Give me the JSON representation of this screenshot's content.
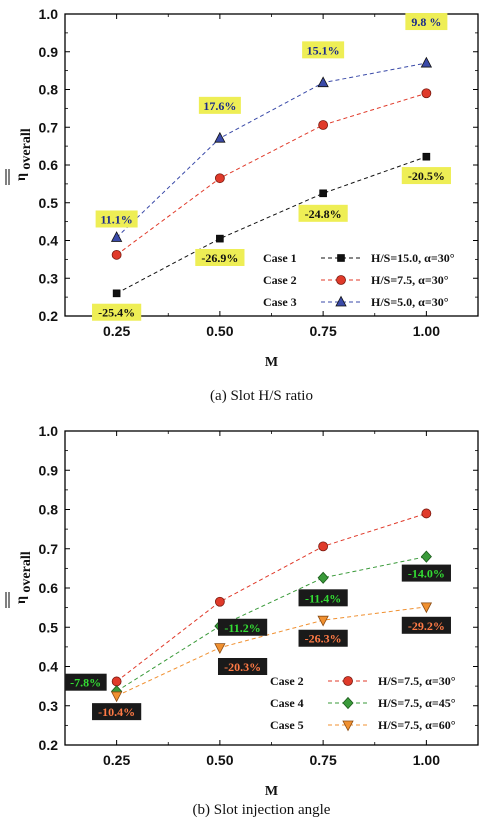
{
  "chart_data": [
    {
      "type": "line",
      "caption": "(a)  Slot  H/S  ratio",
      "xlabel": "M",
      "ylabel_main": "η",
      "ylabel_sub": "overall",
      "xlim": [
        0.125,
        1.125
      ],
      "ylim": [
        0.2,
        1.0
      ],
      "xticks": [
        0.25,
        0.5,
        0.75,
        1.0
      ],
      "xtick_labels": [
        "0.25",
        "0.50",
        "0.75",
        "1.00"
      ],
      "yticks": [
        0.2,
        0.3,
        0.4,
        0.5,
        0.6,
        0.7,
        0.8,
        0.9,
        1.0
      ],
      "ytick_labels": [
        "0.2",
        "0.3",
        "0.4",
        "0.5",
        "0.6",
        "0.7",
        "0.8",
        "0.9",
        "1.0"
      ],
      "grid": false,
      "legend_position": "bottom-right",
      "series": [
        {
          "case": "Case 1",
          "desc": "H/S=15.0,  α=30°",
          "marker": "square",
          "color": "#111111",
          "x": [
            0.25,
            0.5,
            0.75,
            1.0
          ],
          "y": [
            0.26,
            0.405,
            0.525,
            0.622
          ]
        },
        {
          "case": "Case 2",
          "desc": "H/S=7.5,    α=30°",
          "marker": "circle",
          "color": "#e03a2a",
          "x": [
            0.25,
            0.5,
            0.75,
            1.0
          ],
          "y": [
            0.362,
            0.565,
            0.706,
            0.79
          ]
        },
        {
          "case": "Case 3",
          "desc": "H/S=5.0,    α=30°",
          "marker": "triangle-up",
          "color": "#3a4aa8",
          "x": [
            0.25,
            0.5,
            0.75,
            1.0
          ],
          "y": [
            0.408,
            0.671,
            0.818,
            0.87
          ]
        }
      ],
      "annotations": [
        {
          "text": "11.1%",
          "x": 0.25,
          "y": 0.457,
          "bg": "#eeee55",
          "fg": "#1a2a8a"
        },
        {
          "text": "17.6%",
          "x": 0.5,
          "y": 0.758,
          "bg": "#eeee55",
          "fg": "#1a2a8a"
        },
        {
          "text": "15.1%",
          "x": 0.75,
          "y": 0.905,
          "bg": "#eeee55",
          "fg": "#1a2a8a"
        },
        {
          "text": "9.8 %",
          "x": 1.0,
          "y": 0.98,
          "bg": "#eeee55",
          "fg": "#1a2a8a"
        },
        {
          "text": "-25.4%",
          "x": 0.25,
          "y": 0.21,
          "bg": "#eeee55",
          "fg": "#111111"
        },
        {
          "text": "-26.9%",
          "x": 0.5,
          "y": 0.355,
          "bg": "#eeee55",
          "fg": "#111111"
        },
        {
          "text": "-24.8%",
          "x": 0.75,
          "y": 0.472,
          "bg": "#eeee55",
          "fg": "#111111"
        },
        {
          "text": "-20.5%",
          "x": 1.0,
          "y": 0.572,
          "bg": "#eeee55",
          "fg": "#111111"
        }
      ]
    },
    {
      "type": "line",
      "caption": "(b)  Slot  injection  angle",
      "xlabel": "M",
      "ylabel_main": "η",
      "ylabel_sub": "overall",
      "xlim": [
        0.125,
        1.125
      ],
      "ylim": [
        0.2,
        1.0
      ],
      "xticks": [
        0.25,
        0.5,
        0.75,
        1.0
      ],
      "xtick_labels": [
        "0.25",
        "0.50",
        "0.75",
        "1.00"
      ],
      "yticks": [
        0.2,
        0.3,
        0.4,
        0.5,
        0.6,
        0.7,
        0.8,
        0.9,
        1.0
      ],
      "ytick_labels": [
        "0.2",
        "0.3",
        "0.4",
        "0.5",
        "0.6",
        "0.7",
        "0.8",
        "0.9",
        "1.0"
      ],
      "grid": false,
      "legend_position": "bottom-right",
      "series": [
        {
          "case": "Case 2",
          "desc": "H/S=7.5,    α=30°",
          "marker": "circle",
          "color": "#e03a2a",
          "x": [
            0.25,
            0.5,
            0.75,
            1.0
          ],
          "y": [
            0.362,
            0.565,
            0.706,
            0.79
          ]
        },
        {
          "case": "Case 4",
          "desc": "H/S=7.5,    α=45°",
          "marker": "diamond",
          "color": "#3a9a3a",
          "x": [
            0.25,
            0.5,
            0.75,
            1.0
          ],
          "y": [
            0.337,
            0.503,
            0.626,
            0.68
          ]
        },
        {
          "case": "Case 5",
          "desc": "H/S=7.5,    α=60°",
          "marker": "triangle-down",
          "color": "#f09030",
          "x": [
            0.25,
            0.5,
            0.75,
            1.0
          ],
          "y": [
            0.325,
            0.448,
            0.518,
            0.552
          ]
        }
      ],
      "annotations": [
        {
          "text": "-7.8%",
          "x": 0.175,
          "y": 0.36,
          "bg": "#1a1a1a",
          "fg": "#33dd33"
        },
        {
          "text": "-11.2%",
          "x": 0.555,
          "y": 0.5,
          "bg": "#1a1a1a",
          "fg": "#33dd33"
        },
        {
          "text": "-11.4%",
          "x": 0.75,
          "y": 0.575,
          "bg": "#1a1a1a",
          "fg": "#33dd33"
        },
        {
          "text": "-14.0%",
          "x": 1.0,
          "y": 0.638,
          "bg": "#1a1a1a",
          "fg": "#33dd33"
        },
        {
          "text": "-10.4%",
          "x": 0.25,
          "y": 0.285,
          "bg": "#1a1a1a",
          "fg": "#ff7a45"
        },
        {
          "text": "-20.3%",
          "x": 0.555,
          "y": 0.4,
          "bg": "#1a1a1a",
          "fg": "#ff7a45"
        },
        {
          "text": "-26.3%",
          "x": 0.75,
          "y": 0.472,
          "bg": "#1a1a1a",
          "fg": "#ff7a45"
        },
        {
          "text": "-29.2%",
          "x": 1.0,
          "y": 0.505,
          "bg": "#1a1a1a",
          "fg": "#ff7a45"
        }
      ]
    }
  ]
}
